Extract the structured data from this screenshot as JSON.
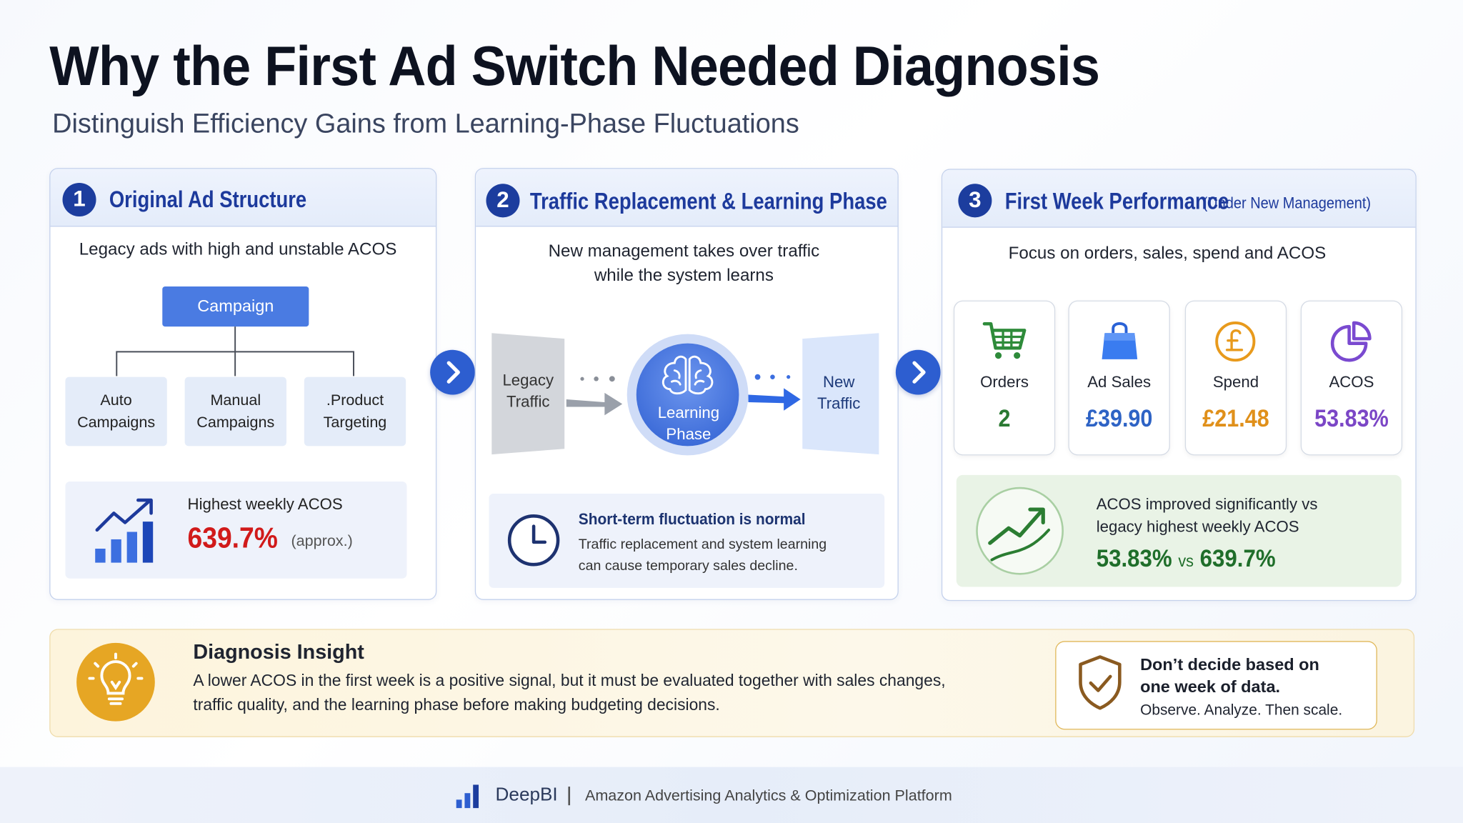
{
  "header": {
    "title": "Why the First Ad Switch Needed Diagnosis",
    "subtitle": "Distinguish Efficiency Gains from Learning-Phase Fluctuations"
  },
  "panels": [
    {
      "number": "1",
      "title": "Original Ad Structure",
      "description": "Legacy ads with high and unstable ACOS",
      "root": "Campaign",
      "children": [
        "Auto Campaigns",
        "Manual Campaigns",
        ".Product Targeting"
      ],
      "highlight": {
        "label": "Highest weekly ACOS",
        "value": "639.7%",
        "note": "(approx.)"
      }
    },
    {
      "number": "2",
      "title": "Traffic Replacement & Learning Phase",
      "description": "New management takes over traffic while the system learns",
      "flow": [
        "Legacy Traffic",
        "Learning Phase",
        "New Traffic"
      ],
      "note": {
        "title": "Short-term fluctuation is normal",
        "text": "Traffic replacement and system learning can cause temporary sales decline."
      }
    },
    {
      "number": "3",
      "title": "First Week Performance",
      "title_note": "(Under New Management)",
      "description": "Focus on orders, sales, spend and ACOS",
      "metrics": [
        {
          "label": "Orders",
          "value": "2"
        },
        {
          "label": "Ad Sales",
          "value": "£39.90"
        },
        {
          "label": "Spend",
          "value": "£21.48"
        },
        {
          "label": "ACOS",
          "value": "53.83%"
        }
      ],
      "comparison": {
        "text": "ACOS improved significantly vs legacy highest weekly ACOS",
        "new_value": "53.83%",
        "separator": "vs",
        "old_value": "639.7%"
      }
    }
  ],
  "insight": {
    "title": "Diagnosis Insight",
    "text": "A lower ACOS in the first week is a positive signal, but it must be evaluated together with sales changes, traffic quality, and the learning phase before making budgeting decisions.",
    "callout": {
      "title": "Don’t decide based on one week of data.",
      "text": "Observe. Analyze. Then scale."
    }
  },
  "footer": {
    "brand": "DeepBI",
    "tagline": "Amazon Advertising Analytics & Optimization Platform"
  }
}
